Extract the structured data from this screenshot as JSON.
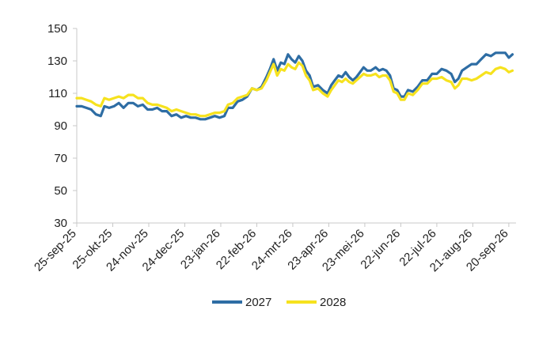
{
  "chart_data": {
    "type": "line",
    "title": "",
    "xlabel": "",
    "ylabel": "",
    "ylim": [
      30,
      150
    ],
    "yticks": [
      30,
      50,
      70,
      90,
      110,
      130,
      150
    ],
    "xlim": [
      "2025-09-25",
      "2026-09-26"
    ],
    "xticks": [
      {
        "date": "2025-09-25",
        "label": "25-sep-25"
      },
      {
        "date": "2025-10-25",
        "label": "25-okt-25"
      },
      {
        "date": "2025-11-24",
        "label": "24-nov-25"
      },
      {
        "date": "2025-12-24",
        "label": "24-dec-25"
      },
      {
        "date": "2026-01-23",
        "label": "23-jan-26"
      },
      {
        "date": "2026-02-22",
        "label": "22-feb-26"
      },
      {
        "date": "2026-03-24",
        "label": "24-mrt-26"
      },
      {
        "date": "2026-04-23",
        "label": "23-apr-26"
      },
      {
        "date": "2026-05-23",
        "label": "23-mei-26"
      },
      {
        "date": "2026-06-22",
        "label": "22-jun-26"
      },
      {
        "date": "2026-07-22",
        "label": "22-jul-26"
      },
      {
        "date": "2026-08-21",
        "label": "21-aug-26"
      },
      {
        "date": "2026-09-20",
        "label": "20-sep-26"
      }
    ],
    "grid": false,
    "legend_position": "bottom",
    "series": [
      {
        "name": "2027",
        "color": "#2e6da4",
        "points": [
          [
            "2025-09-25",
            102
          ],
          [
            "2025-09-29",
            102
          ],
          [
            "2025-10-03",
            101
          ],
          [
            "2025-10-07",
            100
          ],
          [
            "2025-10-11",
            97
          ],
          [
            "2025-10-15",
            96
          ],
          [
            "2025-10-18",
            102
          ],
          [
            "2025-10-22",
            101
          ],
          [
            "2025-10-26",
            102
          ],
          [
            "2025-10-30",
            104
          ],
          [
            "2025-11-03",
            101
          ],
          [
            "2025-11-07",
            104
          ],
          [
            "2025-11-11",
            104
          ],
          [
            "2025-11-15",
            102
          ],
          [
            "2025-11-19",
            103
          ],
          [
            "2025-11-23",
            100
          ],
          [
            "2025-11-27",
            100
          ],
          [
            "2025-12-01",
            101
          ],
          [
            "2025-12-05",
            99
          ],
          [
            "2025-12-09",
            99
          ],
          [
            "2025-12-13",
            96
          ],
          [
            "2025-12-17",
            97
          ],
          [
            "2025-12-21",
            95
          ],
          [
            "2025-12-25",
            96
          ],
          [
            "2025-12-29",
            95
          ],
          [
            "2026-01-02",
            95
          ],
          [
            "2026-01-06",
            94
          ],
          [
            "2026-01-10",
            94
          ],
          [
            "2026-01-14",
            95
          ],
          [
            "2026-01-18",
            96
          ],
          [
            "2026-01-22",
            95
          ],
          [
            "2026-01-26",
            96
          ],
          [
            "2026-01-29",
            101
          ],
          [
            "2026-02-02",
            101
          ],
          [
            "2026-02-06",
            105
          ],
          [
            "2026-02-10",
            106
          ],
          [
            "2026-02-14",
            108
          ],
          [
            "2026-02-18",
            113
          ],
          [
            "2026-02-22",
            112
          ],
          [
            "2026-02-26",
            114
          ],
          [
            "2026-03-02",
            120
          ],
          [
            "2026-03-05",
            125
          ],
          [
            "2026-03-08",
            131
          ],
          [
            "2026-03-11",
            124
          ],
          [
            "2026-03-14",
            129
          ],
          [
            "2026-03-17",
            128
          ],
          [
            "2026-03-20",
            134
          ],
          [
            "2026-03-23",
            131
          ],
          [
            "2026-03-26",
            129
          ],
          [
            "2026-03-29",
            133
          ],
          [
            "2026-04-01",
            130
          ],
          [
            "2026-04-04",
            124
          ],
          [
            "2026-04-07",
            121
          ],
          [
            "2026-04-10",
            114
          ],
          [
            "2026-04-14",
            115
          ],
          [
            "2026-04-18",
            112
          ],
          [
            "2026-04-22",
            110
          ],
          [
            "2026-04-25",
            115
          ],
          [
            "2026-04-28",
            118
          ],
          [
            "2026-05-01",
            121
          ],
          [
            "2026-05-04",
            120
          ],
          [
            "2026-05-07",
            123
          ],
          [
            "2026-05-10",
            120
          ],
          [
            "2026-05-13",
            118
          ],
          [
            "2026-05-16",
            120
          ],
          [
            "2026-05-19",
            123
          ],
          [
            "2026-05-22",
            126
          ],
          [
            "2026-05-25",
            124
          ],
          [
            "2026-05-28",
            124
          ],
          [
            "2026-06-01",
            126
          ],
          [
            "2026-06-04",
            124
          ],
          [
            "2026-06-07",
            125
          ],
          [
            "2026-06-10",
            124
          ],
          [
            "2026-06-13",
            121
          ],
          [
            "2026-06-16",
            113
          ],
          [
            "2026-06-19",
            112
          ],
          [
            "2026-06-22",
            108
          ],
          [
            "2026-06-25",
            108
          ],
          [
            "2026-06-28",
            112
          ],
          [
            "2026-07-02",
            111
          ],
          [
            "2026-07-06",
            114
          ],
          [
            "2026-07-10",
            118
          ],
          [
            "2026-07-14",
            118
          ],
          [
            "2026-07-18",
            122
          ],
          [
            "2026-07-22",
            122
          ],
          [
            "2026-07-26",
            125
          ],
          [
            "2026-07-30",
            124
          ],
          [
            "2026-08-03",
            122
          ],
          [
            "2026-08-06",
            117
          ],
          [
            "2026-08-09",
            119
          ],
          [
            "2026-08-12",
            124
          ],
          [
            "2026-08-16",
            126
          ],
          [
            "2026-08-20",
            128
          ],
          [
            "2026-08-24",
            128
          ],
          [
            "2026-08-28",
            131
          ],
          [
            "2026-09-01",
            134
          ],
          [
            "2026-09-05",
            133
          ],
          [
            "2026-09-09",
            135
          ],
          [
            "2026-09-13",
            135
          ],
          [
            "2026-09-17",
            135
          ],
          [
            "2026-09-20",
            132
          ],
          [
            "2026-09-23",
            134
          ]
        ]
      },
      {
        "name": "2028",
        "color": "#f6e21e",
        "points": [
          [
            "2025-09-25",
            107
          ],
          [
            "2025-09-29",
            107
          ],
          [
            "2025-10-03",
            106
          ],
          [
            "2025-10-07",
            105
          ],
          [
            "2025-10-11",
            103
          ],
          [
            "2025-10-15",
            102
          ],
          [
            "2025-10-18",
            107
          ],
          [
            "2025-10-22",
            106
          ],
          [
            "2025-10-26",
            107
          ],
          [
            "2025-10-30",
            108
          ],
          [
            "2025-11-03",
            107
          ],
          [
            "2025-11-07",
            109
          ],
          [
            "2025-11-11",
            109
          ],
          [
            "2025-11-15",
            107
          ],
          [
            "2025-11-19",
            107
          ],
          [
            "2025-11-23",
            104
          ],
          [
            "2025-11-27",
            103
          ],
          [
            "2025-12-01",
            103
          ],
          [
            "2025-12-05",
            102
          ],
          [
            "2025-12-09",
            101
          ],
          [
            "2025-12-13",
            99
          ],
          [
            "2025-12-17",
            100
          ],
          [
            "2025-12-21",
            99
          ],
          [
            "2025-12-25",
            98
          ],
          [
            "2025-12-29",
            97
          ],
          [
            "2026-01-02",
            97
          ],
          [
            "2026-01-06",
            96
          ],
          [
            "2026-01-10",
            96
          ],
          [
            "2026-01-14",
            97
          ],
          [
            "2026-01-18",
            98
          ],
          [
            "2026-01-22",
            98
          ],
          [
            "2026-01-26",
            99
          ],
          [
            "2026-01-29",
            103
          ],
          [
            "2026-02-02",
            104
          ],
          [
            "2026-02-06",
            107
          ],
          [
            "2026-02-10",
            108
          ],
          [
            "2026-02-14",
            109
          ],
          [
            "2026-02-18",
            113
          ],
          [
            "2026-02-22",
            112
          ],
          [
            "2026-02-26",
            113
          ],
          [
            "2026-03-02",
            118
          ],
          [
            "2026-03-05",
            123
          ],
          [
            "2026-03-08",
            128
          ],
          [
            "2026-03-11",
            121
          ],
          [
            "2026-03-14",
            125
          ],
          [
            "2026-03-17",
            124
          ],
          [
            "2026-03-20",
            128
          ],
          [
            "2026-03-23",
            126
          ],
          [
            "2026-03-26",
            125
          ],
          [
            "2026-03-29",
            129
          ],
          [
            "2026-04-01",
            127
          ],
          [
            "2026-04-04",
            121
          ],
          [
            "2026-04-07",
            118
          ],
          [
            "2026-04-10",
            112
          ],
          [
            "2026-04-14",
            113
          ],
          [
            "2026-04-18",
            110
          ],
          [
            "2026-04-22",
            108
          ],
          [
            "2026-04-25",
            112
          ],
          [
            "2026-04-28",
            115
          ],
          [
            "2026-05-01",
            118
          ],
          [
            "2026-05-04",
            117
          ],
          [
            "2026-05-07",
            119
          ],
          [
            "2026-05-10",
            117
          ],
          [
            "2026-05-13",
            116
          ],
          [
            "2026-05-16",
            118
          ],
          [
            "2026-05-19",
            120
          ],
          [
            "2026-05-22",
            122
          ],
          [
            "2026-05-25",
            121
          ],
          [
            "2026-05-28",
            121
          ],
          [
            "2026-06-01",
            122
          ],
          [
            "2026-06-04",
            120
          ],
          [
            "2026-06-07",
            121
          ],
          [
            "2026-06-10",
            121
          ],
          [
            "2026-06-13",
            118
          ],
          [
            "2026-06-16",
            111
          ],
          [
            "2026-06-19",
            110
          ],
          [
            "2026-06-22",
            106
          ],
          [
            "2026-06-25",
            106
          ],
          [
            "2026-06-28",
            110
          ],
          [
            "2026-07-02",
            109
          ],
          [
            "2026-07-06",
            112
          ],
          [
            "2026-07-10",
            116
          ],
          [
            "2026-07-14",
            116
          ],
          [
            "2026-07-18",
            119
          ],
          [
            "2026-07-22",
            119
          ],
          [
            "2026-07-26",
            120
          ],
          [
            "2026-07-30",
            118
          ],
          [
            "2026-08-03",
            117
          ],
          [
            "2026-08-06",
            113
          ],
          [
            "2026-08-09",
            115
          ],
          [
            "2026-08-12",
            119
          ],
          [
            "2026-08-16",
            119
          ],
          [
            "2026-08-20",
            118
          ],
          [
            "2026-08-24",
            119
          ],
          [
            "2026-08-28",
            121
          ],
          [
            "2026-09-01",
            123
          ],
          [
            "2026-09-05",
            122
          ],
          [
            "2026-09-09",
            125
          ],
          [
            "2026-09-13",
            126
          ],
          [
            "2026-09-17",
            125
          ],
          [
            "2026-09-20",
            123
          ],
          [
            "2026-09-23",
            124
          ]
        ]
      }
    ]
  }
}
